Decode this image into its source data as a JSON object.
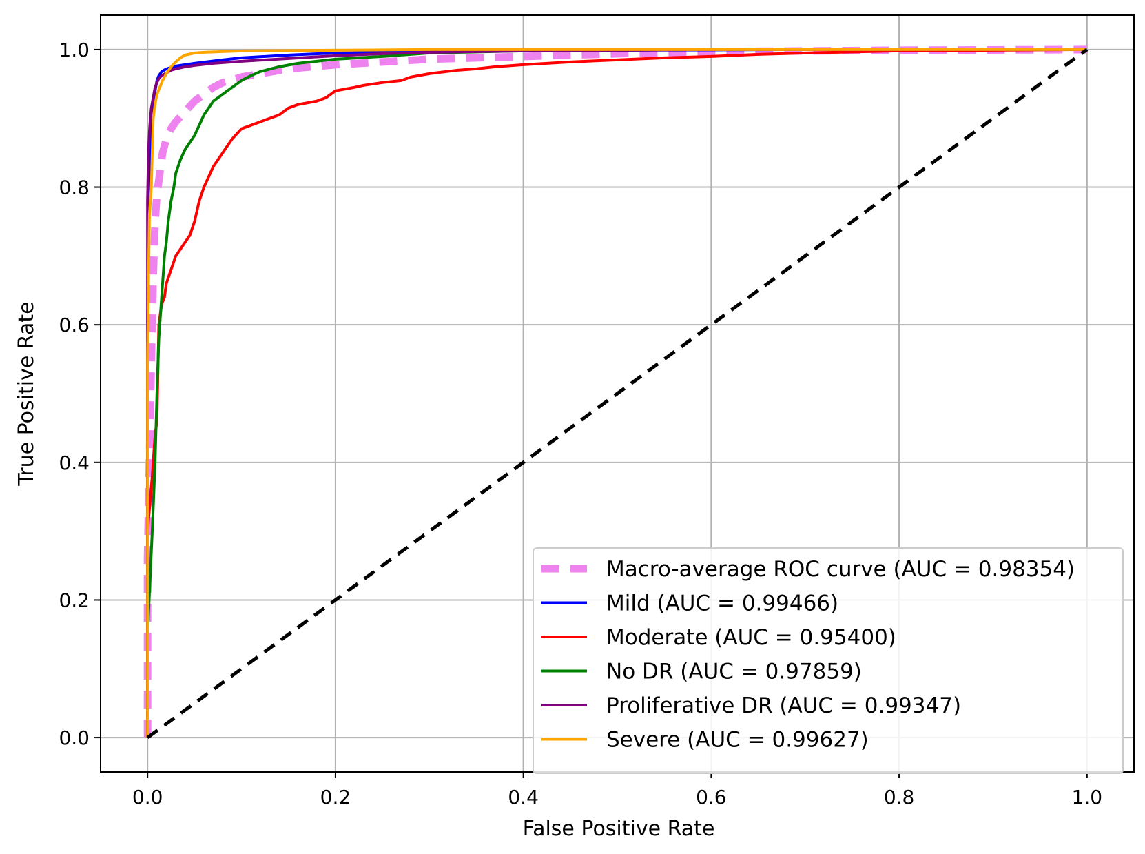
{
  "chart_data": {
    "type": "line",
    "title": "",
    "xlabel": "False Positive Rate",
    "ylabel": "True Positive Rate",
    "xlim": [
      -0.05,
      1.05
    ],
    "ylim": [
      -0.05,
      1.05
    ],
    "xticks": [
      0.0,
      0.2,
      0.4,
      0.6,
      0.8,
      1.0
    ],
    "yticks": [
      0.0,
      0.2,
      0.4,
      0.6,
      0.8,
      1.0
    ],
    "xtick_labels": [
      "0.0",
      "0.2",
      "0.4",
      "0.6",
      "0.8",
      "1.0"
    ],
    "ytick_labels": [
      "0.0",
      "0.2",
      "0.4",
      "0.6",
      "0.8",
      "1.0"
    ],
    "grid": true,
    "legend_position": "lower-right",
    "series": [
      {
        "name": "Macro-average ROC curve (AUC = 0.98354)",
        "color": "#ee82ee",
        "style": "dashed-thick",
        "x": [
          0.0,
          0.0,
          0.002,
          0.004,
          0.006,
          0.008,
          0.01,
          0.013,
          0.016,
          0.02,
          0.025,
          0.03,
          0.04,
          0.05,
          0.06,
          0.07,
          0.08,
          0.1,
          0.12,
          0.15,
          0.2,
          0.25,
          0.3,
          0.4,
          0.5,
          0.6,
          0.8,
          1.0
        ],
        "y": [
          0.0,
          0.26,
          0.4,
          0.55,
          0.67,
          0.75,
          0.79,
          0.82,
          0.85,
          0.87,
          0.885,
          0.895,
          0.91,
          0.925,
          0.935,
          0.945,
          0.952,
          0.96,
          0.965,
          0.972,
          0.978,
          0.982,
          0.986,
          0.99,
          0.994,
          0.997,
          0.999,
          1.0
        ]
      },
      {
        "name": "Mild (AUC = 0.99466)",
        "color": "#0000ff",
        "style": "solid",
        "x": [
          0.0,
          0.0,
          0.002,
          0.004,
          0.006,
          0.008,
          0.01,
          0.012,
          0.015,
          0.02,
          0.03,
          0.05,
          0.08,
          0.1,
          0.15,
          0.2,
          0.3,
          0.5,
          0.7,
          1.0
        ],
        "y": [
          0.0,
          0.6,
          0.8,
          0.88,
          0.92,
          0.94,
          0.955,
          0.962,
          0.968,
          0.972,
          0.976,
          0.98,
          0.985,
          0.988,
          0.992,
          0.995,
          0.997,
          0.999,
          1.0,
          1.0
        ]
      },
      {
        "name": "Moderate (AUC = 0.95400)",
        "color": "#ff0000",
        "style": "solid",
        "x": [
          0.0,
          0.0,
          0.005,
          0.008,
          0.01,
          0.011,
          0.012,
          0.015,
          0.018,
          0.02,
          0.025,
          0.03,
          0.035,
          0.04,
          0.045,
          0.05,
          0.055,
          0.06,
          0.065,
          0.07,
          0.08,
          0.09,
          0.1,
          0.11,
          0.12,
          0.14,
          0.15,
          0.16,
          0.18,
          0.19,
          0.2,
          0.22,
          0.23,
          0.25,
          0.27,
          0.28,
          0.3,
          0.33,
          0.35,
          0.37,
          0.4,
          0.45,
          0.5,
          0.55,
          0.6,
          0.65,
          0.7,
          0.8,
          0.9,
          1.0
        ],
        "y": [
          0.0,
          0.3,
          0.38,
          0.44,
          0.46,
          0.53,
          0.6,
          0.63,
          0.64,
          0.66,
          0.68,
          0.7,
          0.71,
          0.72,
          0.73,
          0.75,
          0.78,
          0.8,
          0.815,
          0.83,
          0.85,
          0.87,
          0.885,
          0.89,
          0.895,
          0.905,
          0.915,
          0.92,
          0.925,
          0.93,
          0.94,
          0.945,
          0.948,
          0.952,
          0.955,
          0.96,
          0.965,
          0.97,
          0.972,
          0.975,
          0.978,
          0.982,
          0.985,
          0.988,
          0.99,
          0.993,
          0.995,
          0.998,
          0.999,
          1.0
        ]
      },
      {
        "name": "No DR (AUC = 0.97859)",
        "color": "#008000",
        "style": "solid",
        "x": [
          0.0,
          0.0,
          0.005,
          0.008,
          0.01,
          0.012,
          0.015,
          0.018,
          0.02,
          0.022,
          0.025,
          0.028,
          0.03,
          0.035,
          0.04,
          0.045,
          0.05,
          0.055,
          0.06,
          0.065,
          0.07,
          0.08,
          0.09,
          0.1,
          0.11,
          0.12,
          0.14,
          0.16,
          0.18,
          0.2,
          0.25,
          0.3,
          0.4,
          0.6,
          1.0
        ],
        "y": [
          0.0,
          0.15,
          0.3,
          0.4,
          0.5,
          0.58,
          0.64,
          0.7,
          0.72,
          0.75,
          0.78,
          0.8,
          0.82,
          0.84,
          0.855,
          0.865,
          0.875,
          0.89,
          0.905,
          0.915,
          0.925,
          0.935,
          0.945,
          0.955,
          0.962,
          0.968,
          0.975,
          0.98,
          0.983,
          0.986,
          0.99,
          0.995,
          0.998,
          1.0,
          1.0
        ]
      },
      {
        "name": "Proliferative DR (AUC = 0.99347)",
        "color": "#800080",
        "style": "solid",
        "x": [
          0.0,
          0.0,
          0.001,
          0.002,
          0.003,
          0.004,
          0.006,
          0.008,
          0.01,
          0.012,
          0.015,
          0.02,
          0.025,
          0.03,
          0.04,
          0.05,
          0.07,
          0.1,
          0.15,
          0.2,
          0.25,
          0.3,
          0.4,
          0.6,
          1.0
        ],
        "y": [
          0.0,
          0.78,
          0.85,
          0.88,
          0.9,
          0.915,
          0.93,
          0.945,
          0.952,
          0.958,
          0.962,
          0.966,
          0.97,
          0.972,
          0.975,
          0.977,
          0.98,
          0.983,
          0.987,
          0.991,
          0.994,
          0.996,
          0.998,
          1.0,
          1.0
        ]
      },
      {
        "name": "Severe (AUC = 0.99627)",
        "color": "#ffa500",
        "style": "solid",
        "x": [
          0.0,
          0.0,
          0.001,
          0.002,
          0.004,
          0.005,
          0.006,
          0.008,
          0.01,
          0.013,
          0.016,
          0.02,
          0.025,
          0.03,
          0.035,
          0.04,
          0.05,
          0.06,
          0.08,
          0.1,
          0.2,
          0.3,
          0.5,
          1.0
        ],
        "y": [
          0.0,
          0.55,
          0.66,
          0.76,
          0.8,
          0.85,
          0.9,
          0.92,
          0.935,
          0.945,
          0.955,
          0.965,
          0.975,
          0.982,
          0.988,
          0.992,
          0.995,
          0.996,
          0.997,
          0.998,
          0.999,
          1.0,
          1.0,
          1.0
        ]
      },
      {
        "name": "",
        "color": "#000000",
        "style": "dashed-diagonal",
        "x": [
          0.0,
          1.0
        ],
        "y": [
          0.0,
          1.0
        ]
      }
    ]
  }
}
